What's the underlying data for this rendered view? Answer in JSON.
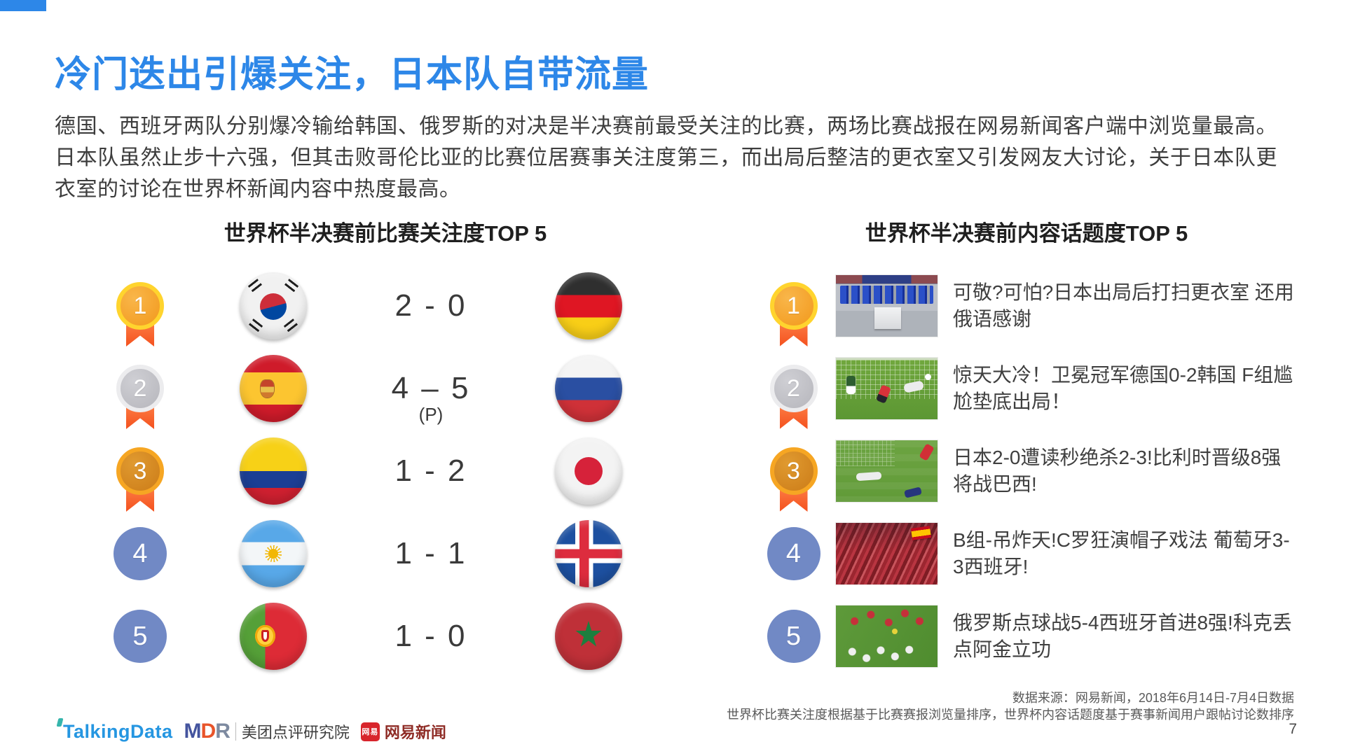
{
  "slide": {
    "title": "冷门迭出引爆关注，日本队自带流量",
    "paragraph": "德国、西班牙两队分别爆冷输给韩国、俄罗斯的对决是半决赛前最受关注的比赛，两场比赛战报在网易新闻客户端中浏览量最高。日本队虽然止步十六强，但其击败哥伦比亚的比赛位居赛事关注度第三，而出局后整洁的更衣室又引发网友大讨论，关于日本队更衣室的讨论在世界杯新闻内容中热度最高。",
    "page_number": "7"
  },
  "colors": {
    "accent_blue": "#2d87e8",
    "medal_gold": "#f2991c",
    "medal_silver": "#bfbfc4",
    "medal_bronze": "#cc7c18",
    "ribbon_red": "#f4511e",
    "rank_plain_blue": "#7189c5"
  },
  "left_panel": {
    "header": "世界杯半决赛前比赛关注度TOP 5",
    "rows": [
      {
        "rank": "1",
        "medal": "gold",
        "team_a": "korea",
        "score": "2 - 0",
        "score_note": "",
        "team_b": "germany"
      },
      {
        "rank": "2",
        "medal": "silver",
        "team_a": "spain",
        "score": "4 – 5",
        "score_note": "(P)",
        "team_b": "russia"
      },
      {
        "rank": "3",
        "medal": "bronze",
        "team_a": "colombia",
        "score": "1 - 2",
        "score_note": "",
        "team_b": "japan"
      },
      {
        "rank": "4",
        "medal": "plain",
        "team_a": "argentina",
        "score": "1 - 1",
        "score_note": "",
        "team_b": "iceland"
      },
      {
        "rank": "5",
        "medal": "plain",
        "team_a": "portugal",
        "score": "1 - 0",
        "score_note": "",
        "team_b": "morocco"
      }
    ]
  },
  "right_panel": {
    "header": "世界杯半决赛前内容话题度TOP 5",
    "rows": [
      {
        "rank": "1",
        "medal": "gold",
        "thumb": "locker-room",
        "headline": "可敬?可怕?日本出局后打扫更衣室 还用俄语感谢"
      },
      {
        "rank": "2",
        "medal": "silver",
        "thumb": "germany-korea",
        "headline": "惊天大冷！卫冕冠军德国0-2韩国 F组尴尬垫底出局！"
      },
      {
        "rank": "3",
        "medal": "bronze",
        "thumb": "japan-belgium",
        "headline": "日本2-0遭读秒绝杀2-3!比利时晋级8强将战巴西!"
      },
      {
        "rank": "4",
        "medal": "plain",
        "thumb": "spain-fans",
        "headline": "B组-吊炸天!C罗狂演帽子戏法 葡萄牙3-3西班牙!"
      },
      {
        "rank": "5",
        "medal": "plain",
        "thumb": "russia-celebration",
        "headline": "俄罗斯点球战5-4西班牙首进8强!科克丢点阿金立功"
      }
    ]
  },
  "footer": {
    "source_line1": "数据来源：网易新闻，2018年6月14日-7月4日数据",
    "source_line2": "世界杯比赛关注度根据基于比赛赛报浏览量排序，世界杯内容话题度基于赛事新闻用户跟帖讨论数排序",
    "logos": {
      "talkingdata": "TalkingData",
      "mdr_m": "M",
      "mdr_d": "D",
      "mdr_r": "R",
      "mdr_org": "美团点评研究院",
      "netease_badge": "网易",
      "netease_news": "网易新闻"
    }
  }
}
